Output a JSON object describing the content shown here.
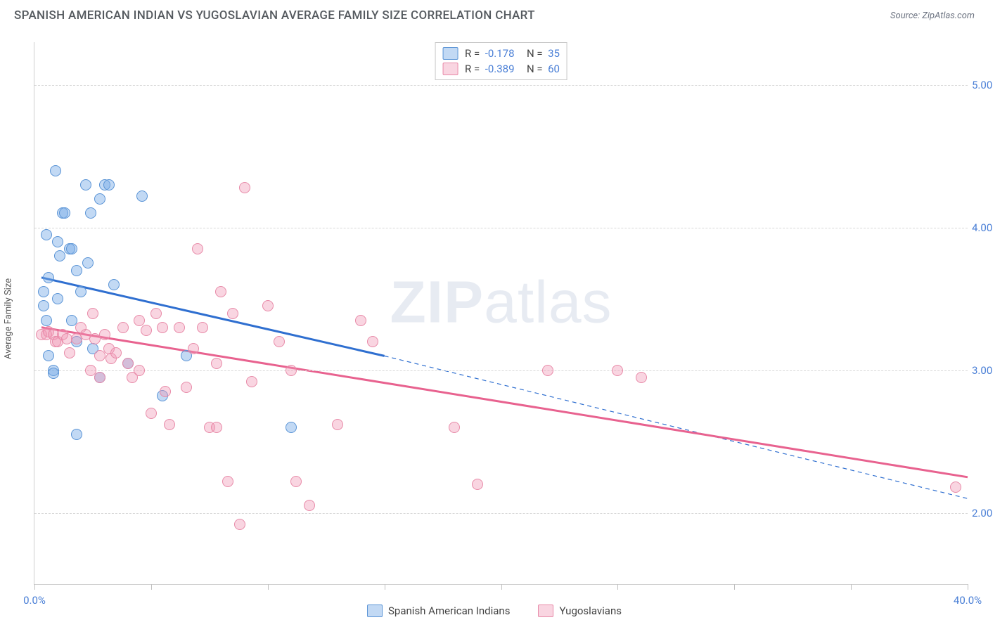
{
  "title": "SPANISH AMERICAN INDIAN VS YUGOSLAVIAN AVERAGE FAMILY SIZE CORRELATION CHART",
  "source": "Source: ZipAtlas.com",
  "watermark_a": "ZIP",
  "watermark_b": "atlas",
  "ylabel": "Average Family Size",
  "xaxis": {
    "min": 0,
    "max": 40,
    "ticks": [
      0,
      5,
      10,
      15,
      20,
      25,
      30,
      35,
      40
    ],
    "labeled": {
      "0": "0.0%",
      "40": "40.0%"
    }
  },
  "yaxis": {
    "min": 1.5,
    "max": 5.3,
    "gridlines": [
      2.0,
      3.0,
      4.0,
      5.0
    ],
    "labels": {
      "2.0": "2.00",
      "3.0": "3.00",
      "4.0": "4.00",
      "5.0": "5.00"
    }
  },
  "series": [
    {
      "key": "sai",
      "label": "Spanish American Indians",
      "fill": "rgba(120,170,230,0.45)",
      "stroke": "#5a94d6",
      "line_color": "#2f6fd0",
      "R": "-0.178",
      "N": "35",
      "trend": {
        "x1": 0.3,
        "y1": 3.65,
        "x2_solid": 15.0,
        "y2_solid": 3.1,
        "x2": 40.0,
        "y2": 2.1
      },
      "points": [
        [
          0.4,
          3.55
        ],
        [
          0.4,
          3.45
        ],
        [
          0.5,
          3.35
        ],
        [
          0.6,
          3.65
        ],
        [
          0.5,
          3.95
        ],
        [
          0.6,
          3.1
        ],
        [
          0.8,
          3.0
        ],
        [
          0.8,
          2.98
        ],
        [
          0.9,
          4.4
        ],
        [
          1.0,
          3.5
        ],
        [
          1.1,
          3.8
        ],
        [
          1.2,
          4.1
        ],
        [
          1.3,
          4.1
        ],
        [
          1.5,
          3.85
        ],
        [
          1.6,
          3.85
        ],
        [
          1.6,
          3.35
        ],
        [
          1.8,
          3.7
        ],
        [
          1.8,
          2.55
        ],
        [
          2.0,
          3.55
        ],
        [
          2.2,
          4.3
        ],
        [
          2.3,
          3.75
        ],
        [
          2.4,
          4.1
        ],
        [
          2.5,
          3.15
        ],
        [
          2.8,
          2.95
        ],
        [
          3.0,
          4.3
        ],
        [
          3.2,
          4.3
        ],
        [
          3.4,
          3.6
        ],
        [
          4.0,
          3.05
        ],
        [
          4.6,
          4.22
        ],
        [
          5.5,
          2.82
        ],
        [
          6.5,
          3.1
        ],
        [
          11.0,
          2.6
        ],
        [
          2.8,
          4.2
        ],
        [
          1.8,
          3.2
        ],
        [
          1.0,
          3.9
        ]
      ]
    },
    {
      "key": "yug",
      "label": "Yugoslavians",
      "fill": "rgba(240,150,180,0.40)",
      "stroke": "#e88aa8",
      "line_color": "#e8628f",
      "R": "-0.389",
      "N": "60",
      "trend": {
        "x1": 0.3,
        "y1": 3.3,
        "x2_solid": 40.0,
        "y2_solid": 2.25,
        "x2": 40.0,
        "y2": 2.25
      },
      "points": [
        [
          0.3,
          3.25
        ],
        [
          0.5,
          3.25
        ],
        [
          0.6,
          3.27
        ],
        [
          0.8,
          3.25
        ],
        [
          0.9,
          3.2
        ],
        [
          1.0,
          3.2
        ],
        [
          1.2,
          3.25
        ],
        [
          1.4,
          3.22
        ],
        [
          1.5,
          3.12
        ],
        [
          1.8,
          3.22
        ],
        [
          2.0,
          3.3
        ],
        [
          2.2,
          3.25
        ],
        [
          2.4,
          3.0
        ],
        [
          2.5,
          3.4
        ],
        [
          2.6,
          3.22
        ],
        [
          2.8,
          2.95
        ],
        [
          2.8,
          3.1
        ],
        [
          3.0,
          3.25
        ],
        [
          3.2,
          3.15
        ],
        [
          3.3,
          3.08
        ],
        [
          3.5,
          3.12
        ],
        [
          3.8,
          3.3
        ],
        [
          4.0,
          3.05
        ],
        [
          4.2,
          2.95
        ],
        [
          4.5,
          3.0
        ],
        [
          4.8,
          3.28
        ],
        [
          5.0,
          2.7
        ],
        [
          5.2,
          3.4
        ],
        [
          5.5,
          3.3
        ],
        [
          5.6,
          2.85
        ],
        [
          5.8,
          2.62
        ],
        [
          6.2,
          3.3
        ],
        [
          6.5,
          2.88
        ],
        [
          6.8,
          3.15
        ],
        [
          7.0,
          3.85
        ],
        [
          7.2,
          3.3
        ],
        [
          7.5,
          2.6
        ],
        [
          7.8,
          3.05
        ],
        [
          8.0,
          3.55
        ],
        [
          8.3,
          2.22
        ],
        [
          8.5,
          3.4
        ],
        [
          8.8,
          1.92
        ],
        [
          9.0,
          4.28
        ],
        [
          9.3,
          2.92
        ],
        [
          10.0,
          3.45
        ],
        [
          10.5,
          3.2
        ],
        [
          11.0,
          3.0
        ],
        [
          11.2,
          2.22
        ],
        [
          11.8,
          2.05
        ],
        [
          13.0,
          2.62
        ],
        [
          14.0,
          3.35
        ],
        [
          14.5,
          3.2
        ],
        [
          18.0,
          2.6
        ],
        [
          19.0,
          2.2
        ],
        [
          22.0,
          3.0
        ],
        [
          25.0,
          3.0
        ],
        [
          26.0,
          2.95
        ],
        [
          7.8,
          2.6
        ],
        [
          4.5,
          3.35
        ],
        [
          39.5,
          2.18
        ]
      ]
    }
  ],
  "chart_style": {
    "point_radius": 8,
    "grid_color": "#d8d8d8",
    "axis_color": "#d0d0d0",
    "background": "#ffffff",
    "title_color": "#555a5f",
    "tick_label_color": "#4a7fd6",
    "line_width": 3,
    "dash_width": 1.2
  }
}
